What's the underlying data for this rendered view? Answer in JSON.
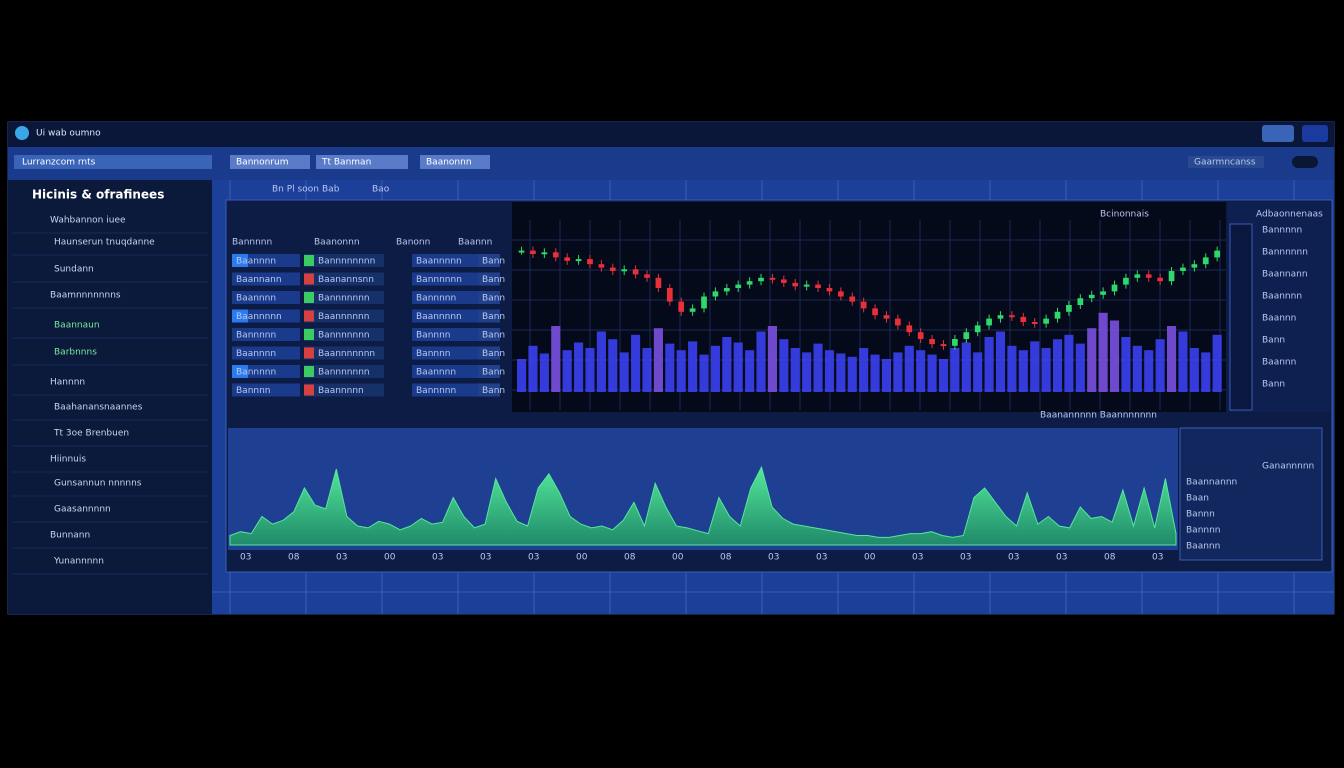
{
  "window": {
    "title": "Ui wab oumno"
  },
  "toolbar": {
    "dropdown": "Lurranzcom rnts",
    "tabs": [
      "Bannonrum",
      "Tt Banman",
      "Baanonnn"
    ],
    "button": "Gaarmncanss"
  },
  "sidebar": {
    "heading": "Hicinis & ofrafinees",
    "items": [
      "Wahbannon iuee",
      "Haunserun tnuqdanne",
      "Sundann",
      "Baamnnnnnnns",
      "Baannaun",
      "Barbnnns",
      "Hannnn",
      "Baahanansnaannes",
      "Tt 3oe Brenbuen",
      "Hiinnuis",
      "Gunsannun nnnnns",
      "Gaasannnnn",
      "Bunnann",
      "Yunannnnn"
    ]
  },
  "subtabs": [
    "Bn Pl soon",
    "Bab",
    "Bao"
  ],
  "order_book": {
    "header": [
      "Bannnnn",
      "Baanonnn",
      "Banonn",
      "Baannn"
    ],
    "rows": [
      [
        "Baannnn",
        "Bannnnnnnn",
        "Baannnnn",
        "Bann"
      ],
      [
        "Baannann",
        "Baanannsnn",
        "Bannnnnn",
        "Bann"
      ],
      [
        "Baannnn",
        "Bannnnnnn",
        "Bannnnn",
        "Bann"
      ],
      [
        "Baannnnn",
        "Baannnnnn",
        "Baannnnn",
        "Bann"
      ],
      [
        "Bannnnn",
        "Bannnnnnn",
        "Bannnn",
        "Bann"
      ],
      [
        "Baannnn",
        "Baannnnnnn",
        "Bannnn",
        "Bann"
      ],
      [
        "Bannnnn",
        "Bannnnnnn",
        "Baannnn",
        "Bann"
      ],
      [
        "Bannnn",
        "Baannnnn",
        "Bannnnn",
        "Bann"
      ]
    ]
  },
  "chart": {
    "legend": "Bcinonnais",
    "footer": "Baanannnnn  Baannnnnnn",
    "closes": [
      82,
      80,
      81,
      78,
      76,
      77,
      74,
      72,
      70,
      71,
      68,
      66,
      60,
      52,
      46,
      48,
      55,
      58,
      60,
      62,
      64,
      66,
      65,
      63,
      61,
      62,
      60,
      58,
      55,
      52,
      48,
      44,
      42,
      38,
      34,
      30,
      27,
      26,
      30,
      34,
      38,
      42,
      44,
      43,
      40,
      39,
      42,
      46,
      50,
      54,
      56,
      58,
      62,
      66,
      68,
      66,
      64,
      70,
      72,
      74,
      78,
      82
    ],
    "volumes": [
      30,
      42,
      35,
      60,
      38,
      45,
      40,
      55,
      48,
      36,
      52,
      40,
      58,
      44,
      38,
      46,
      34,
      42,
      50,
      45,
      38,
      55,
      60,
      48,
      40,
      36,
      44,
      38,
      35,
      32,
      40,
      34,
      30,
      36,
      42,
      38,
      34,
      30,
      40,
      45,
      36,
      50,
      55,
      42,
      38,
      46,
      40,
      48,
      52,
      44,
      58,
      72,
      65,
      50,
      42,
      38,
      48,
      60,
      55,
      40,
      36,
      52
    ],
    "volume_color": "#3b3ff0",
    "up_color": "#2fd86a",
    "down_color": "#e8303a"
  },
  "right_panel": {
    "title": "Adbaonnenaas",
    "items": [
      "Bannnnn",
      "Bannnnnn",
      "Baannann",
      "Baannnn",
      "Baannn",
      "Bann",
      "Baannn",
      "Bann"
    ]
  },
  "area": {
    "values": [
      10,
      14,
      12,
      30,
      22,
      26,
      35,
      60,
      42,
      38,
      80,
      30,
      20,
      18,
      25,
      22,
      16,
      20,
      28,
      22,
      24,
      50,
      30,
      18,
      22,
      70,
      45,
      25,
      20,
      60,
      75,
      55,
      30,
      22,
      18,
      20,
      16,
      26,
      45,
      20,
      65,
      40,
      20,
      18,
      15,
      12,
      50,
      30,
      20,
      60,
      82,
      40,
      28,
      22,
      20,
      18,
      16,
      14,
      12,
      10,
      10,
      8,
      8,
      10,
      12,
      12,
      14,
      10,
      8,
      10,
      50,
      60,
      45,
      30,
      20,
      55,
      22,
      30,
      20,
      18,
      40,
      28,
      30,
      24,
      58,
      20,
      60,
      18,
      70,
      12
    ],
    "color": "#54e89a",
    "ticks": [
      "03",
      "08",
      "03",
      "00",
      "03",
      "03",
      "03",
      "00",
      "08",
      "00",
      "08",
      "03",
      "03",
      "00",
      "03",
      "03",
      "03",
      "03",
      "08",
      "03"
    ]
  },
  "lower_right": {
    "title": "Ganannnnn",
    "items": [
      "Baannannn",
      "Baan",
      "Bannn",
      "Bannnn",
      "Baannn"
    ]
  }
}
